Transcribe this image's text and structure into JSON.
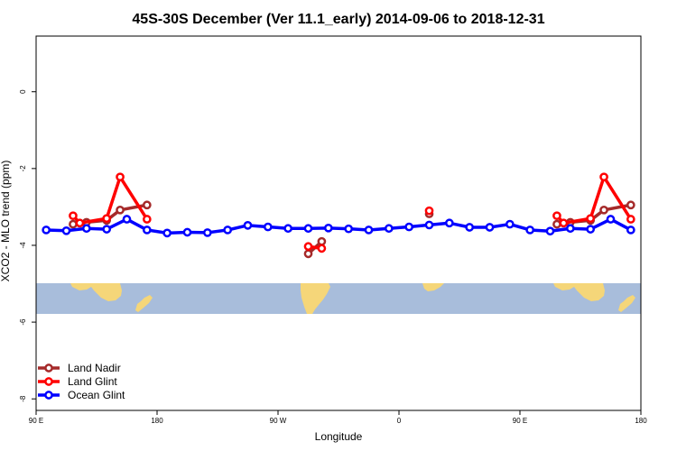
{
  "chart_data": {
    "type": "line",
    "title": "45S-30S December (Ver 11.1_early)   2014-09-06 to 2018-12-31",
    "xlabel": "Longitude",
    "ylabel": "XCO2 - MLO trend (ppm)",
    "xlim": [
      90,
      540
    ],
    "ylim": [
      -8.3,
      1.45
    ],
    "x_ticks": [
      {
        "value": 90,
        "label": "90 E"
      },
      {
        "value": 180,
        "label": "180"
      },
      {
        "value": 270,
        "label": "90 W"
      },
      {
        "value": 360,
        "label": "0"
      },
      {
        "value": 450,
        "label": "90 E"
      },
      {
        "value": 540,
        "label": "180"
      }
    ],
    "y_ticks": [
      {
        "value": 0,
        "label": "0"
      },
      {
        "value": -2,
        "label": "-2"
      },
      {
        "value": -4,
        "label": "-4"
      },
      {
        "value": -6,
        "label": "-6"
      },
      {
        "value": -8,
        "label": "-8"
      }
    ],
    "legend_position": "bottom-left",
    "background_map": {
      "description": "world map band",
      "ymin": -6.0,
      "ymax": -5.18,
      "ocean_color": "#a8bddb",
      "land_color": "#f5d679"
    },
    "series": [
      {
        "name": "Land Nadir",
        "color": "#a52a2a",
        "segments": [
          [
            [
              117.5,
              -3.45
            ],
            [
              127.5,
              -3.4
            ],
            [
              142.5,
              -3.35
            ],
            [
              152.5,
              -3.08
            ],
            [
              172.5,
              -2.95
            ]
          ],
          [
            [
              292.5,
              -4.22
            ],
            [
              302.5,
              -3.9
            ]
          ],
          [
            [
              382.5,
              -3.18
            ]
          ],
          [
            [
              477.5,
              -3.45
            ],
            [
              487.5,
              -3.4
            ],
            [
              502.5,
              -3.35
            ],
            [
              512.5,
              -3.08
            ],
            [
              532.5,
              -2.95
            ]
          ]
        ]
      },
      {
        "name": "Land Glint",
        "color": "#ff0000",
        "segments": [
          [
            [
              117.5,
              -3.23
            ],
            [
              122.5,
              -3.42
            ],
            [
              142.5,
              -3.3
            ],
            [
              152.5,
              -2.22
            ],
            [
              172.5,
              -3.32
            ]
          ],
          [
            [
              292.5,
              -4.03
            ],
            [
              302.5,
              -4.08
            ]
          ],
          [
            [
              382.5,
              -3.1
            ]
          ],
          [
            [
              477.5,
              -3.23
            ],
            [
              482.5,
              -3.42
            ],
            [
              502.5,
              -3.3
            ],
            [
              512.5,
              -2.22
            ],
            [
              532.5,
              -3.32
            ]
          ]
        ]
      },
      {
        "name": "Ocean Glint",
        "color": "#0000ff",
        "segments": [
          [
            [
              97.5,
              -3.6
            ],
            [
              112.5,
              -3.62
            ],
            [
              127.5,
              -3.56
            ],
            [
              142.5,
              -3.58
            ],
            [
              157.5,
              -3.32
            ],
            [
              172.5,
              -3.6
            ],
            [
              187.5,
              -3.68
            ],
            [
              202.5,
              -3.66
            ],
            [
              217.5,
              -3.67
            ],
            [
              232.5,
              -3.6
            ],
            [
              247.5,
              -3.48
            ],
            [
              262.5,
              -3.52
            ],
            [
              277.5,
              -3.56
            ],
            [
              292.5,
              -3.56
            ],
            [
              307.5,
              -3.55
            ],
            [
              322.5,
              -3.57
            ],
            [
              337.5,
              -3.6
            ],
            [
              352.5,
              -3.56
            ],
            [
              367.5,
              -3.52
            ],
            [
              382.5,
              -3.47
            ],
            [
              397.5,
              -3.42
            ],
            [
              412.5,
              -3.53
            ],
            [
              427.5,
              -3.53
            ],
            [
              442.5,
              -3.45
            ],
            [
              457.5,
              -3.6
            ],
            [
              472.5,
              -3.63
            ],
            [
              487.5,
              -3.56
            ],
            [
              502.5,
              -3.58
            ],
            [
              517.5,
              -3.32
            ],
            [
              532.5,
              -3.6
            ]
          ]
        ]
      }
    ]
  }
}
